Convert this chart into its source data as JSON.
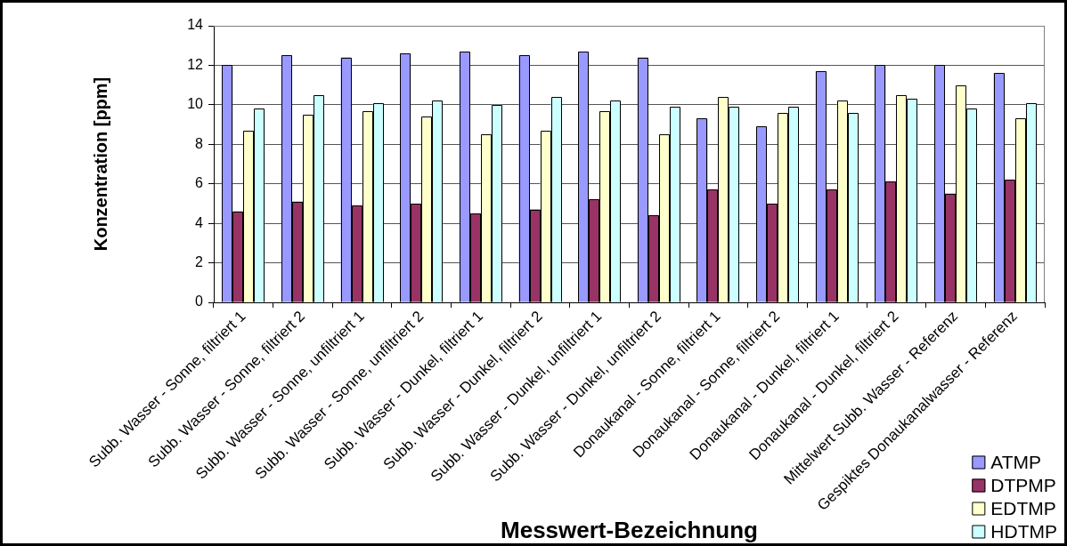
{
  "chart_data": {
    "type": "bar",
    "xlabel": "Messwert-Bezeichnung",
    "ylabel": "Konzentration [ppm]",
    "categories": [
      "Subb. Wasser - Sonne, filtriert 1",
      "Subb. Wasser - Sonne, filtriert 2",
      "Subb. Wasser - Sonne, unfiltriert 1",
      "Subb. Wasser - Sonne, unfiltriert 2",
      "Subb. Wasser - Dunkel, filtriert 1",
      "Subb. Wasser - Dunkel, filtriert 2",
      "Subb. Wasser - Dunkel, unfiltriert 1",
      "Subb. Wasser - Dunkel, unfiltriert 2",
      "Donaukanal - Sonne, filtriert 1",
      "Donaukanal - Sonne, filtriert 2",
      "Donaukanal - Dunkel, filtriert 1",
      "Donaukanal - Dunkel, filtriert 2",
      "Mittelwert Subb. Wasser - Referenz",
      "Gespiktes Donaukanalwasser - Referenz"
    ],
    "series": [
      {
        "name": "ATMP",
        "color": "#9999ff",
        "values": [
          12.0,
          12.5,
          12.4,
          12.6,
          12.7,
          12.5,
          12.7,
          12.4,
          9.3,
          8.9,
          11.7,
          12.0,
          12.0,
          11.6
        ]
      },
      {
        "name": "DTPMP",
        "color": "#993366",
        "values": [
          4.6,
          5.1,
          4.9,
          5.0,
          4.5,
          4.7,
          5.2,
          4.4,
          5.7,
          5.0,
          5.7,
          6.1,
          5.5,
          6.2
        ]
      },
      {
        "name": "EDTMP",
        "color": "#ffffcc",
        "values": [
          8.7,
          9.5,
          9.7,
          9.4,
          8.5,
          8.7,
          9.7,
          8.5,
          10.4,
          9.6,
          10.2,
          10.5,
          11.0,
          9.3
        ]
      },
      {
        "name": "HDTMP",
        "color": "#ccffff",
        "values": [
          9.8,
          10.5,
          10.1,
          10.2,
          10.0,
          10.4,
          10.2,
          9.9,
          9.9,
          9.9,
          9.6,
          10.3,
          9.8,
          10.1
        ]
      }
    ],
    "ylim": [
      0,
      14
    ],
    "yticks": [
      0,
      2,
      4,
      6,
      8,
      10,
      12,
      14
    ],
    "grid": "y",
    "legend": "bottom right"
  }
}
